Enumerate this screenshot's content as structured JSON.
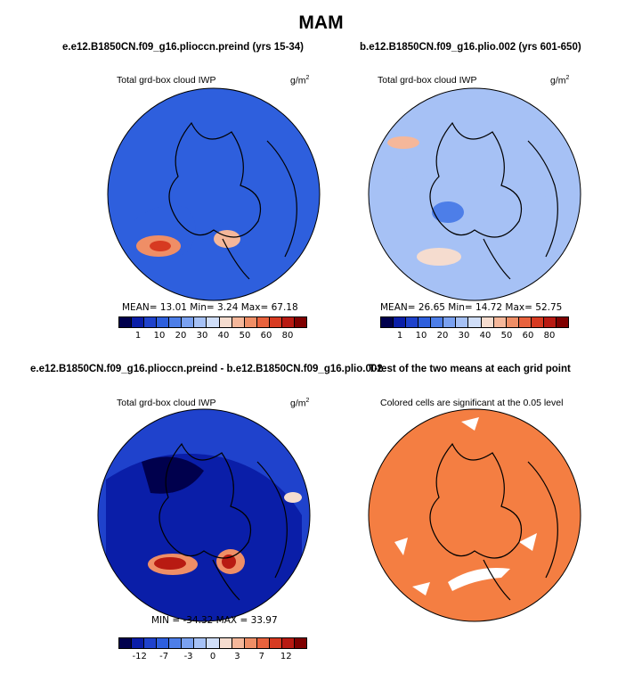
{
  "main_title": "MAM",
  "colors": {
    "palette": [
      "#00004d",
      "#0a1ea8",
      "#1f42cc",
      "#2e5fdd",
      "#4d7ee8",
      "#7aa1f0",
      "#a6c1f5",
      "#d0def8",
      "#f5dccf",
      "#f5b79a",
      "#ef8e66",
      "#e8623d",
      "#d73a21",
      "#b81a12",
      "#7f0000"
    ],
    "significant": "#f47e42"
  },
  "chart_data": [
    {
      "type": "heatmap",
      "title": "e.e12.B1850CN.f09_g16.plioccn.preind (yrs 15-34)",
      "subtitle": "Total grd-box cloud IWP",
      "units": "g/m",
      "units_sup": "2",
      "stats": "MEAN=  13.01  Min=   3.24  Max=  67.18",
      "stats_values": {
        "mean": 13.01,
        "min": 3.24,
        "max": 67.18
      },
      "colorbar_ticks": [
        "1",
        "10",
        "20",
        "30",
        "40",
        "50",
        "60",
        "80"
      ],
      "background_level": 3
    },
    {
      "type": "heatmap",
      "title": "b.e12.B1850CN.f09_g16.plio.002 (yrs 601-650)",
      "subtitle": "Total grd-box cloud IWP",
      "units": "g/m",
      "units_sup": "2",
      "stats": "MEAN=  26.65  Min=  14.72  Max=  52.75",
      "stats_values": {
        "mean": 26.65,
        "min": 14.72,
        "max": 52.75
      },
      "colorbar_ticks": [
        "1",
        "10",
        "20",
        "30",
        "40",
        "50",
        "60",
        "80"
      ],
      "background_level": 6
    },
    {
      "type": "heatmap",
      "title": "e.e12.B1850CN.f09_g16.plioccn.preind - b.e12.B1850CN.f09_g16.plio.002",
      "subtitle": "Total grd-box cloud IWP",
      "units": "g/m",
      "units_sup": "2",
      "stats": "MIN = -34.32  MAX =  33.97",
      "stats_values": {
        "min": -34.32,
        "max": 33.97
      },
      "colorbar_ticks": [
        "-12",
        "-7",
        "-3",
        "0",
        "3",
        "7",
        "12"
      ],
      "background_level": 2
    },
    {
      "type": "heatmap",
      "title": "T-test of the two means at each grid point",
      "subtitle": "Colored cells are significant at the 0.05 level",
      "significance_level": 0.05
    }
  ]
}
